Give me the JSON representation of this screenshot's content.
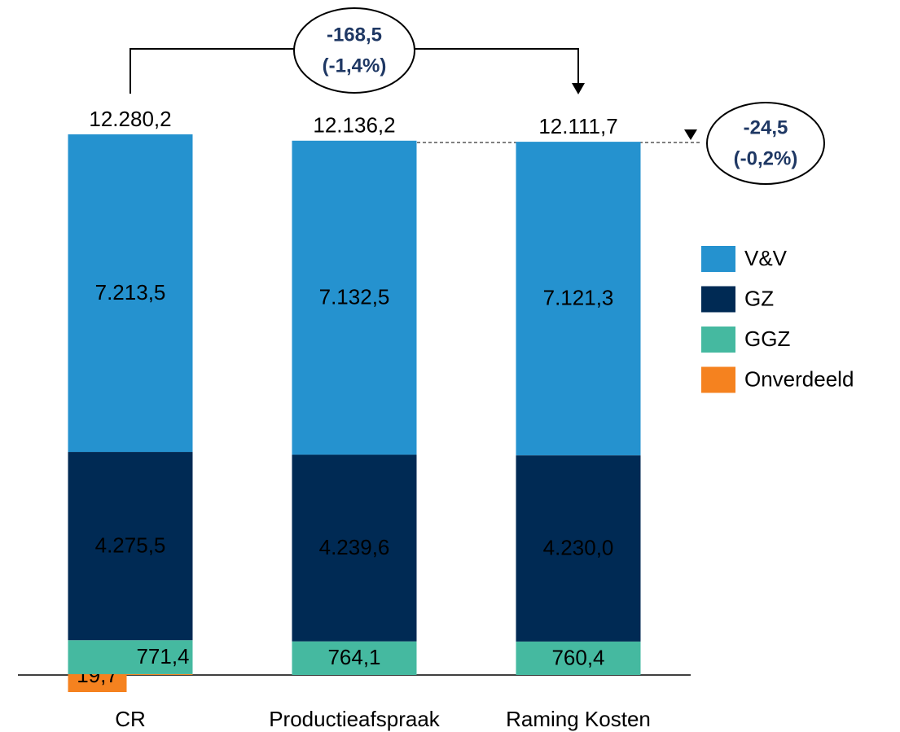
{
  "chart_data": {
    "type": "stacked_bar",
    "categories": [
      "CR",
      "Productieafspraak",
      "Raming Kosten"
    ],
    "series": [
      {
        "name": "Onverdeeld",
        "color": "#f5821f",
        "values": [
          19.7,
          null,
          null
        ],
        "value_labels": [
          "19,7",
          null,
          null
        ]
      },
      {
        "name": "GGZ",
        "color": "#45b9a0",
        "values": [
          771.4,
          764.1,
          760.4
        ],
        "value_labels": [
          "771,4",
          "764,1",
          "760,4"
        ]
      },
      {
        "name": "GZ",
        "color": "#002a54",
        "values": [
          4275.5,
          4239.6,
          4230.0
        ],
        "value_labels": [
          "4.275,5",
          "4.239,6",
          "4.230,0"
        ]
      },
      {
        "name": "V&V",
        "color": "#2592cf",
        "values": [
          7213.5,
          7132.5,
          7121.3
        ],
        "value_labels": [
          "7.213,5",
          "7.132,5",
          "7.121,3"
        ]
      }
    ],
    "totals": [
      12280.2,
      12136.2,
      12111.7
    ],
    "total_labels": [
      "12.280,2",
      "12.136,2",
      "12.111,7"
    ],
    "annotations": [
      {
        "lines": [
          "-168,5",
          "(-1,4%)"
        ]
      },
      {
        "lines": [
          "-24,5",
          "(-0,2%)"
        ]
      }
    ]
  }
}
